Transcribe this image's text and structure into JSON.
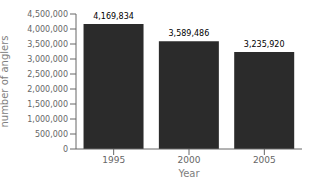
{
  "chart_data": {
    "type": "bar",
    "categories": [
      "1995",
      "2000",
      "2005"
    ],
    "values": [
      4169834,
      3589486,
      3235920
    ],
    "value_labels": [
      "4,169,834",
      "3,589,486",
      "3,235,920"
    ],
    "data_labels": true,
    "color": "#2b2b2b",
    "xlabel": "Year",
    "ylabel": "number of anglers",
    "ylim": [
      0,
      4500000
    ],
    "yticks": [
      0,
      {
        "value": 500000,
        "label": "500,000"
      },
      {
        "value": 1000000,
        "label": "1,000,000"
      },
      {
        "value": 1500000,
        "label": "1,500,000"
      },
      {
        "value": 2000000,
        "label": "2,000,000"
      },
      {
        "value": 2500000,
        "label": "2,500,000"
      },
      {
        "value": 3000000,
        "label": "3,000,000"
      },
      {
        "value": 3500000,
        "label": "3,500,000"
      },
      {
        "value": 4000000,
        "label": "4,000,000"
      },
      {
        "value": 4500000,
        "label": "4,500,000"
      }
    ],
    "grid": false
  }
}
